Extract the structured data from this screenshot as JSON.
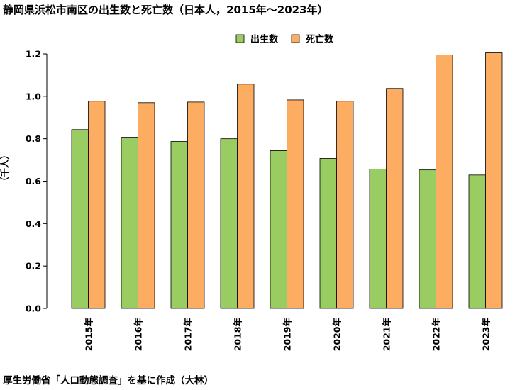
{
  "title": "静岡県浜松市南区の出生数と死亡数（日本人，2015年〜2023年）",
  "source": "厚生労働省「人口動態調査」を基に作成（大林）",
  "chart_data": {
    "type": "bar",
    "title": "静岡県浜松市南区の出生数と死亡数（日本人，2015年〜2023年）",
    "ylabel": "（千人）",
    "xlabel": "",
    "categories": [
      "2015年",
      "2016年",
      "2017年",
      "2018年",
      "2019年",
      "2020年",
      "2021年",
      "2022年",
      "2023年"
    ],
    "series": [
      {
        "name": "出生数",
        "color": "#9ACD61",
        "values": [
          0.843,
          0.807,
          0.787,
          0.8,
          0.744,
          0.707,
          0.657,
          0.653,
          0.629
        ]
      },
      {
        "name": "死亡数",
        "color": "#FDAD62",
        "values": [
          0.977,
          0.97,
          0.973,
          1.057,
          0.983,
          0.977,
          1.037,
          1.195,
          1.205
        ]
      }
    ],
    "ylim": [
      0,
      1.2
    ],
    "yticks": [
      "0.0",
      "0.2",
      "0.4",
      "0.6",
      "0.8",
      "1.0",
      "1.2"
    ],
    "grid": false,
    "legend": "top-center"
  }
}
